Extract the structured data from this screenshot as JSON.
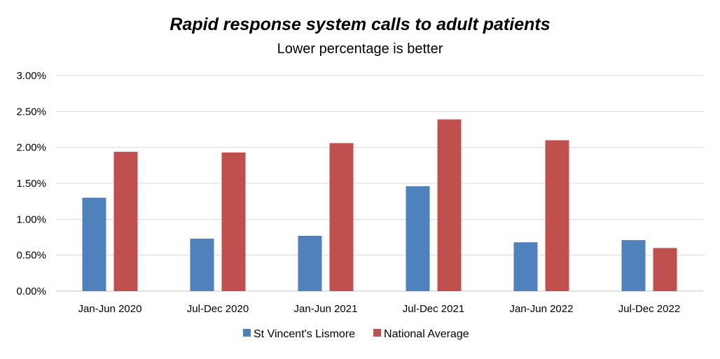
{
  "chart_data": {
    "type": "bar",
    "title": "Rapid response system calls to adult patients",
    "subtitle": "Lower percentage is better",
    "categories": [
      "Jan-Jun 2020",
      "Jul-Dec 2020",
      "Jan-Jun 2021",
      "Jul-Dec 2021",
      "Jan-Jun 2022",
      "Jul-Dec 2022"
    ],
    "series": [
      {
        "name": "St Vincent's Lismore",
        "color": "#4F81BD",
        "values": [
          1.3,
          0.73,
          0.77,
          1.46,
          0.68,
          0.71
        ]
      },
      {
        "name": "National Average",
        "color": "#C0504D",
        "values": [
          1.94,
          1.93,
          2.06,
          2.39,
          2.1,
          0.6
        ]
      }
    ],
    "y_ticks": [
      "0.00%",
      "0.50%",
      "1.00%",
      "1.50%",
      "2.00%",
      "2.50%",
      "3.00%"
    ],
    "ylim": [
      0,
      3.0
    ],
    "y_unit": "%",
    "grid": true,
    "legend_position": "bottom"
  }
}
